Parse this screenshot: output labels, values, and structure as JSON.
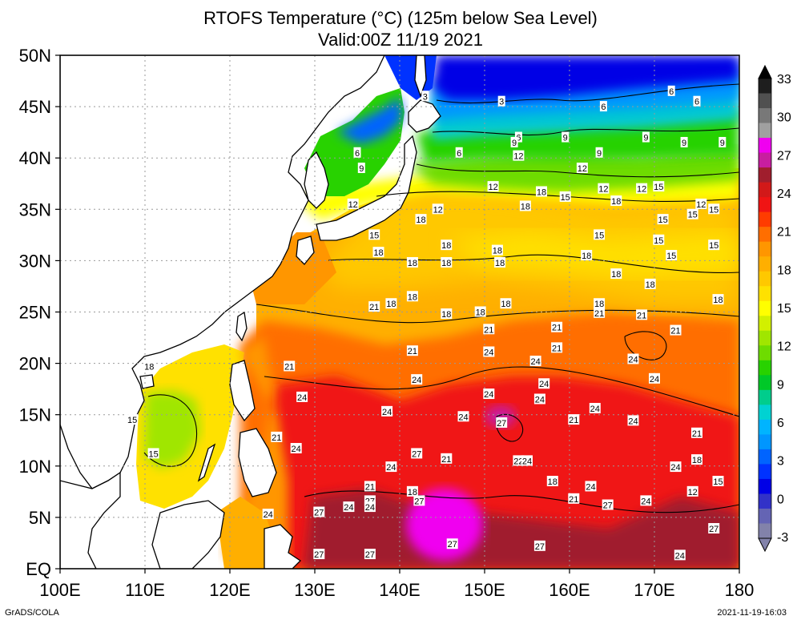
{
  "title_line1": "RTOFS Temperature (°C) (125m below Sea Level)",
  "title_line2": "Valid:00Z 11/19 2021",
  "footer_left": "GrADS/COLA",
  "footer_right": "2021-11-19-16:03",
  "map": {
    "lon_range": [
      100,
      180
    ],
    "lat_range": [
      0,
      50
    ],
    "lon_ticks": [
      {
        "value": 100,
        "label": "100E"
      },
      {
        "value": 110,
        "label": "110E"
      },
      {
        "value": 120,
        "label": "120E"
      },
      {
        "value": 130,
        "label": "130E"
      },
      {
        "value": 140,
        "label": "140E"
      },
      {
        "value": 150,
        "label": "150E"
      },
      {
        "value": 160,
        "label": "160E"
      },
      {
        "value": 170,
        "label": "170E"
      },
      {
        "value": 180,
        "label": "180"
      }
    ],
    "lat_ticks": [
      {
        "value": 0,
        "label": "EQ"
      },
      {
        "value": 5,
        "label": "5N"
      },
      {
        "value": 10,
        "label": "10N"
      },
      {
        "value": 15,
        "label": "15N"
      },
      {
        "value": 20,
        "label": "20N"
      },
      {
        "value": 25,
        "label": "25N"
      },
      {
        "value": 30,
        "label": "30N"
      },
      {
        "value": 35,
        "label": "35N"
      },
      {
        "value": 40,
        "label": "40N"
      },
      {
        "value": 45,
        "label": "45N"
      },
      {
        "value": 50,
        "label": "50N"
      }
    ],
    "grid": true,
    "contour_labels": [
      {
        "lon": 143,
        "lat": 46,
        "text": "3"
      },
      {
        "lon": 152,
        "lat": 45.5,
        "text": "3"
      },
      {
        "lon": 164,
        "lat": 45,
        "text": "6"
      },
      {
        "lon": 172,
        "lat": 46.5,
        "text": "6"
      },
      {
        "lon": 175,
        "lat": 45.5,
        "text": "6"
      },
      {
        "lon": 154,
        "lat": 42,
        "text": "6"
      },
      {
        "lon": 147,
        "lat": 40.5,
        "text": "6"
      },
      {
        "lon": 135,
        "lat": 40.5,
        "text": "6"
      },
      {
        "lon": 153.5,
        "lat": 41.5,
        "text": "9"
      },
      {
        "lon": 159.5,
        "lat": 42,
        "text": "9"
      },
      {
        "lon": 163.5,
        "lat": 40.5,
        "text": "9"
      },
      {
        "lon": 169,
        "lat": 42,
        "text": "9"
      },
      {
        "lon": 173.5,
        "lat": 41.5,
        "text": "9"
      },
      {
        "lon": 178,
        "lat": 41.5,
        "text": "9"
      },
      {
        "lon": 135.5,
        "lat": 39,
        "text": "9"
      },
      {
        "lon": 154,
        "lat": 40.2,
        "text": "12"
      },
      {
        "lon": 161.5,
        "lat": 39,
        "text": "12"
      },
      {
        "lon": 151,
        "lat": 37.2,
        "text": "12"
      },
      {
        "lon": 164,
        "lat": 37,
        "text": "12"
      },
      {
        "lon": 168.5,
        "lat": 37,
        "text": "12"
      },
      {
        "lon": 170.5,
        "lat": 37.2,
        "text": "15"
      },
      {
        "lon": 175.5,
        "lat": 35.5,
        "text": "12"
      },
      {
        "lon": 134.5,
        "lat": 35.5,
        "text": "12"
      },
      {
        "lon": 144.5,
        "lat": 35,
        "text": "12"
      },
      {
        "lon": 156.7,
        "lat": 36.7,
        "text": "18"
      },
      {
        "lon": 154.8,
        "lat": 35.3,
        "text": "18"
      },
      {
        "lon": 159.5,
        "lat": 36.2,
        "text": "15"
      },
      {
        "lon": 165.5,
        "lat": 35.8,
        "text": "18"
      },
      {
        "lon": 171,
        "lat": 34,
        "text": "15"
      },
      {
        "lon": 174.5,
        "lat": 34.5,
        "text": "15"
      },
      {
        "lon": 177,
        "lat": 35,
        "text": "15"
      },
      {
        "lon": 142.5,
        "lat": 34,
        "text": "18"
      },
      {
        "lon": 137,
        "lat": 32.5,
        "text": "15"
      },
      {
        "lon": 163.5,
        "lat": 32.5,
        "text": "15"
      },
      {
        "lon": 170.5,
        "lat": 32,
        "text": "15"
      },
      {
        "lon": 177,
        "lat": 31.5,
        "text": "15"
      },
      {
        "lon": 137.5,
        "lat": 30.8,
        "text": "18"
      },
      {
        "lon": 145.5,
        "lat": 31.5,
        "text": "18"
      },
      {
        "lon": 151.5,
        "lat": 31,
        "text": "18"
      },
      {
        "lon": 141.5,
        "lat": 29.8,
        "text": "18"
      },
      {
        "lon": 145.5,
        "lat": 29.8,
        "text": "18"
      },
      {
        "lon": 151.8,
        "lat": 29.8,
        "text": "18"
      },
      {
        "lon": 162,
        "lat": 30.5,
        "text": "18"
      },
      {
        "lon": 172,
        "lat": 30.5,
        "text": "15"
      },
      {
        "lon": 165.5,
        "lat": 28.7,
        "text": "18"
      },
      {
        "lon": 169.5,
        "lat": 27.7,
        "text": "18"
      },
      {
        "lon": 141.5,
        "lat": 26.5,
        "text": "18"
      },
      {
        "lon": 139,
        "lat": 25.8,
        "text": "18"
      },
      {
        "lon": 137,
        "lat": 25.5,
        "text": "21"
      },
      {
        "lon": 145.5,
        "lat": 24.8,
        "text": "18"
      },
      {
        "lon": 149.5,
        "lat": 25,
        "text": "18"
      },
      {
        "lon": 152.5,
        "lat": 25.8,
        "text": "18"
      },
      {
        "lon": 163.5,
        "lat": 25.8,
        "text": "18"
      },
      {
        "lon": 163.5,
        "lat": 24.9,
        "text": "21"
      },
      {
        "lon": 168.5,
        "lat": 24.7,
        "text": "21"
      },
      {
        "lon": 177.5,
        "lat": 26.2,
        "text": "18"
      },
      {
        "lon": 150.5,
        "lat": 23.3,
        "text": "21"
      },
      {
        "lon": 158.5,
        "lat": 23.5,
        "text": "21"
      },
      {
        "lon": 172.5,
        "lat": 23.2,
        "text": "21"
      },
      {
        "lon": 158.5,
        "lat": 21.5,
        "text": "21"
      },
      {
        "lon": 141.5,
        "lat": 21.2,
        "text": "21"
      },
      {
        "lon": 150.5,
        "lat": 21.1,
        "text": "24"
      },
      {
        "lon": 156,
        "lat": 20.2,
        "text": "24"
      },
      {
        "lon": 167.5,
        "lat": 20.4,
        "text": "24"
      },
      {
        "lon": 110.5,
        "lat": 19.7,
        "text": "18"
      },
      {
        "lon": 127,
        "lat": 19.7,
        "text": "21"
      },
      {
        "lon": 142,
        "lat": 18.4,
        "text": "24"
      },
      {
        "lon": 170,
        "lat": 18.5,
        "text": "24"
      },
      {
        "lon": 157,
        "lat": 18,
        "text": "24"
      },
      {
        "lon": 128.5,
        "lat": 16.7,
        "text": "24"
      },
      {
        "lon": 150.5,
        "lat": 17,
        "text": "24"
      },
      {
        "lon": 156.5,
        "lat": 16.5,
        "text": "24"
      },
      {
        "lon": 163,
        "lat": 15.6,
        "text": "24"
      },
      {
        "lon": 138.5,
        "lat": 15.3,
        "text": "24"
      },
      {
        "lon": 147.5,
        "lat": 14.8,
        "text": "24"
      },
      {
        "lon": 152,
        "lat": 14.2,
        "text": "27"
      },
      {
        "lon": 160.5,
        "lat": 14.5,
        "text": "21"
      },
      {
        "lon": 167.5,
        "lat": 14.4,
        "text": "24"
      },
      {
        "lon": 108.5,
        "lat": 14.5,
        "text": "15"
      },
      {
        "lon": 125.5,
        "lat": 12.8,
        "text": "21"
      },
      {
        "lon": 175,
        "lat": 13.2,
        "text": "21"
      },
      {
        "lon": 127.8,
        "lat": 11.7,
        "text": "24"
      },
      {
        "lon": 111,
        "lat": 11.2,
        "text": "15"
      },
      {
        "lon": 142,
        "lat": 11.2,
        "text": "27"
      },
      {
        "lon": 145.5,
        "lat": 10.7,
        "text": "21"
      },
      {
        "lon": 154,
        "lat": 10.5,
        "text": "22"
      },
      {
        "lon": 155,
        "lat": 10.5,
        "text": "24"
      },
      {
        "lon": 175,
        "lat": 10.6,
        "text": "18"
      },
      {
        "lon": 139,
        "lat": 9.9,
        "text": "24"
      },
      {
        "lon": 172.5,
        "lat": 9.9,
        "text": "24"
      },
      {
        "lon": 136.5,
        "lat": 8,
        "text": "21"
      },
      {
        "lon": 158,
        "lat": 8.5,
        "text": "18"
      },
      {
        "lon": 162.5,
        "lat": 8,
        "text": "24"
      },
      {
        "lon": 177.5,
        "lat": 8.5,
        "text": "15"
      },
      {
        "lon": 141.5,
        "lat": 7.5,
        "text": "18"
      },
      {
        "lon": 174.5,
        "lat": 7.5,
        "text": "12"
      },
      {
        "lon": 136.5,
        "lat": 6.6,
        "text": "27"
      },
      {
        "lon": 142.3,
        "lat": 6.6,
        "text": "27"
      },
      {
        "lon": 160.5,
        "lat": 6.8,
        "text": "21"
      },
      {
        "lon": 169,
        "lat": 6.6,
        "text": "24"
      },
      {
        "lon": 134,
        "lat": 6,
        "text": "24"
      },
      {
        "lon": 136.5,
        "lat": 6,
        "text": "24"
      },
      {
        "lon": 164.5,
        "lat": 6.2,
        "text": "27"
      },
      {
        "lon": 124.5,
        "lat": 5.3,
        "text": "24"
      },
      {
        "lon": 130.5,
        "lat": 5.5,
        "text": "27"
      },
      {
        "lon": 177,
        "lat": 3.9,
        "text": "27"
      },
      {
        "lon": 146.2,
        "lat": 2.4,
        "text": "27"
      },
      {
        "lon": 156.5,
        "lat": 2.2,
        "text": "27"
      },
      {
        "lon": 130.5,
        "lat": 1.4,
        "text": "27"
      },
      {
        "lon": 136.5,
        "lat": 1.4,
        "text": "27"
      },
      {
        "lon": 173,
        "lat": 1.3,
        "text": "24"
      }
    ]
  },
  "colorbar": {
    "labels": [
      "33",
      "30",
      "27",
      "24",
      "21",
      "18",
      "15",
      "12",
      "9",
      "6",
      "3",
      "0",
      "-3"
    ],
    "colors": [
      "#1e1e1e",
      "#505050",
      "#787878",
      "#a0a0a0",
      "#f000f0",
      "#c81ea0",
      "#a01e2d",
      "#d21919",
      "#f01414",
      "#ff3c00",
      "#ff6e00",
      "#ff9600",
      "#ffaf00",
      "#ffc800",
      "#ffe100",
      "#ffff00",
      "#d2f000",
      "#a0e600",
      "#6edc00",
      "#28d200",
      "#00c828",
      "#00cd8c",
      "#00d2d2",
      "#00b4ff",
      "#0096ff",
      "#0064ff",
      "#0032ff",
      "#0000e6",
      "#3232c8",
      "#6464b4",
      "#8282aa"
    ]
  }
}
